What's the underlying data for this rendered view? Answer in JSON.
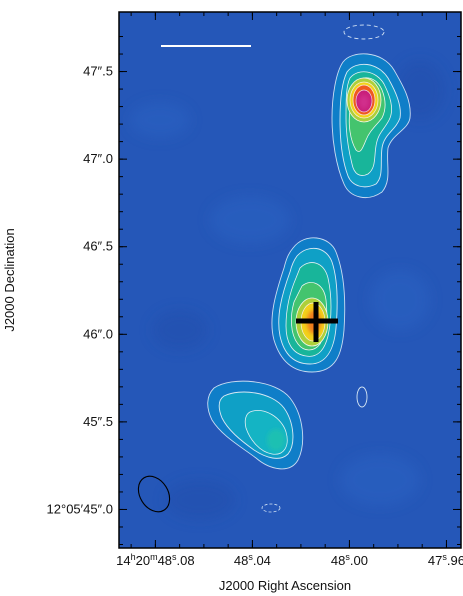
{
  "chart_data": {
    "type": "contour",
    "xlabel": "J2000 Right Ascension",
    "ylabel": "J2000 Declination",
    "x_ticks": [
      {
        "value": 48.08,
        "main": "14",
        "sup1": "h",
        "mid": "20",
        "sup2": "m",
        "rest": "48",
        "sup3": "s",
        "tail": ".08"
      },
      {
        "value": 48.04,
        "main": "",
        "sup1": "",
        "mid": "",
        "sup2": "",
        "rest": "48",
        "sup3": "s",
        "tail": ".04"
      },
      {
        "value": 48.0,
        "main": "",
        "sup1": "",
        "mid": "",
        "sup2": "",
        "rest": "48",
        "sup3": "s",
        "tail": ".00"
      },
      {
        "value": 47.96,
        "main": "",
        "sup1": "",
        "mid": "",
        "sup2": "",
        "rest": "47",
        "sup3": "s",
        "tail": ".96"
      }
    ],
    "y_ticks": [
      {
        "value": 45.0,
        "label": "12°05′45″.0"
      },
      {
        "value": 45.5,
        "label": "45″.5"
      },
      {
        "value": 46.0,
        "label": "46″.0"
      },
      {
        "value": 46.5,
        "label": "46″.5"
      },
      {
        "value": 47.0,
        "label": "47″.0"
      },
      {
        "value": 47.5,
        "label": "47″.5"
      }
    ],
    "xlim": [
      48.095,
      47.954
    ],
    "ylim": [
      44.78,
      47.84
    ],
    "background_color": "#2557b8",
    "sources": [
      {
        "ra": 47.991,
        "dec": 47.29,
        "peak_color": "#c81f7a",
        "levels": 8
      },
      {
        "ra": 48.008,
        "dec": 46.02,
        "peak_color": "#e8c800",
        "levels": 7
      },
      {
        "ra": 48.023,
        "dec": 45.33,
        "peak_color": "#00b8d8",
        "levels": 4
      }
    ],
    "marker": {
      "ra": 48.007,
      "dec": 46.02,
      "shape": "cross",
      "color": "#000000"
    },
    "beam": {
      "ra": 48.078,
      "dec": 44.98,
      "shape": "ellipse"
    },
    "scale_bar": true
  }
}
